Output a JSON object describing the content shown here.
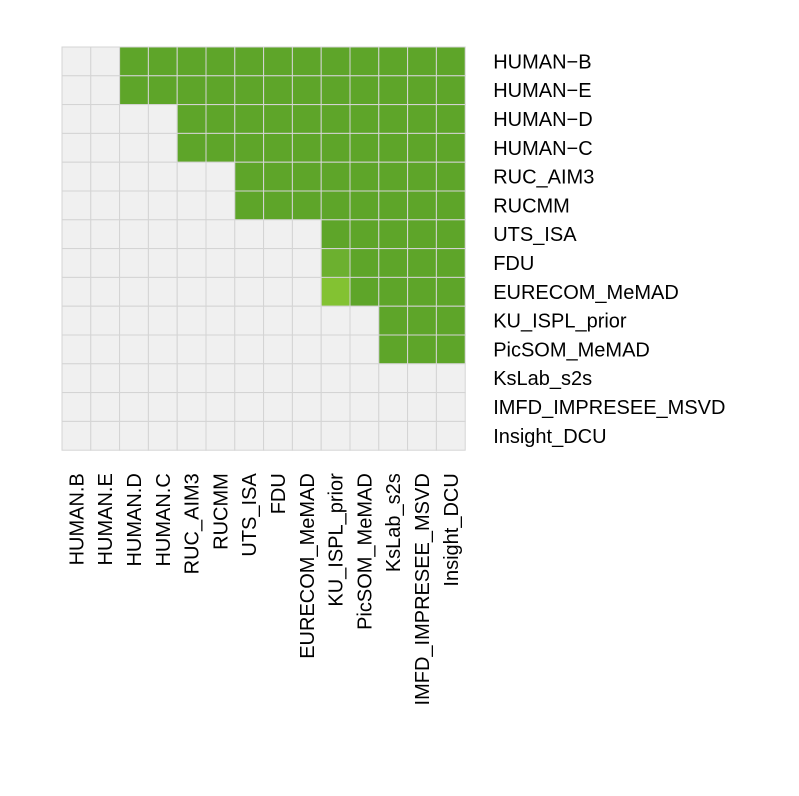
{
  "chart_data": {
    "type": "heatmap",
    "title": "",
    "xlabel": "",
    "ylabel": "",
    "x_labels": [
      "HUMAN.B",
      "HUMAN.E",
      "HUMAN.D",
      "HUMAN.C",
      "RUC_AIM3",
      "RUCMM",
      "UTS_ISA",
      "FDU",
      "EURECOM_MeMAD",
      "KU_ISPL_prior",
      "PicSOM_MeMAD",
      "KsLab_s2s",
      "IMFD_IMPRESEE_MSVD",
      "Insight_DCU"
    ],
    "y_labels": [
      "HUMAN−B",
      "HUMAN−E",
      "HUMAN−D",
      "HUMAN−C",
      "RUC_AIM3",
      "RUCMM",
      "UTS_ISA",
      "FDU",
      "EURECOM_MeMAD",
      "KU_ISPL_prior",
      "PicSOM_MeMAD",
      "KsLab_s2s",
      "IMFD_IMPRESEE_MSVD",
      "Insight_DCU"
    ],
    "values": [
      [
        0,
        0,
        1,
        1,
        1,
        1,
        1,
        1,
        1,
        1,
        1,
        1,
        1,
        1
      ],
      [
        0,
        0,
        1,
        1,
        1,
        1,
        1,
        1,
        1,
        1,
        1,
        1,
        1,
        1
      ],
      [
        0,
        0,
        0,
        0,
        1,
        1,
        1,
        1,
        1,
        1,
        1,
        1,
        1,
        1
      ],
      [
        0,
        0,
        0,
        0,
        1,
        1,
        1,
        1,
        1,
        1,
        1,
        1,
        1,
        1
      ],
      [
        0,
        0,
        0,
        0,
        0,
        0,
        1,
        1,
        1,
        1,
        1,
        1,
        1,
        1
      ],
      [
        0,
        0,
        0,
        0,
        0,
        0,
        1,
        1,
        1,
        1,
        1,
        1,
        1,
        1
      ],
      [
        0,
        0,
        0,
        0,
        0,
        0,
        0,
        0,
        0,
        1,
        1,
        1,
        1,
        1
      ],
      [
        0,
        0,
        0,
        0,
        0,
        0,
        0,
        0,
        0,
        0.9,
        1,
        1,
        1,
        1
      ],
      [
        0,
        0,
        0,
        0,
        0,
        0,
        0,
        0,
        0,
        0.8,
        1,
        1,
        1,
        1
      ],
      [
        0,
        0,
        0,
        0,
        0,
        0,
        0,
        0,
        0,
        0,
        0,
        1,
        1,
        1
      ],
      [
        0,
        0,
        0,
        0,
        0,
        0,
        0,
        0,
        0,
        0,
        0,
        1,
        1,
        1
      ],
      [
        0,
        0,
        0,
        0,
        0,
        0,
        0,
        0,
        0,
        0,
        0,
        0,
        0,
        0
      ],
      [
        0,
        0,
        0,
        0,
        0,
        0,
        0,
        0,
        0,
        0,
        0,
        0,
        0,
        0
      ],
      [
        0,
        0,
        0,
        0,
        0,
        0,
        0,
        0,
        0,
        0,
        0,
        0,
        0,
        0
      ]
    ],
    "colors": {
      "empty": "#f0f0f0",
      "full": "#5ea529",
      "mid": "#6cb02f",
      "light": "#83c232",
      "gridline": "#d4d4d4"
    },
    "legend": "none",
    "grid": true
  }
}
